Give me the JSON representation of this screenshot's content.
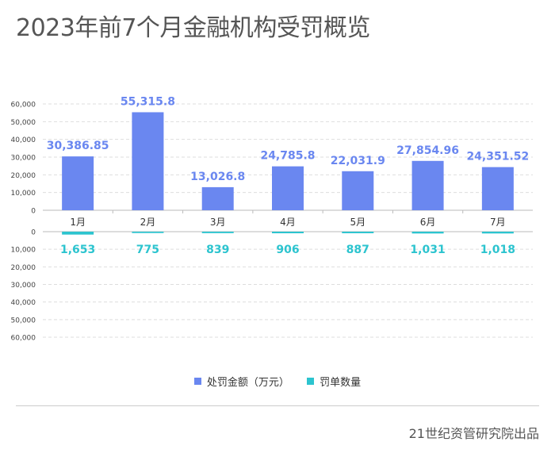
{
  "title": "2023年前7个月金融机构受罚概览",
  "source": "21世纪资管研究院出品",
  "colors": {
    "fine": "#6a87f0",
    "count": "#2cc4cf",
    "grid": "#dddddd",
    "axis": "#bbbbbb"
  },
  "chart_data": {
    "type": "bar",
    "categories": [
      "1月",
      "2月",
      "3月",
      "4月",
      "5月",
      "6月",
      "7月"
    ],
    "series": [
      {
        "name": "处罚金额（万元）",
        "values": [
          30386.85,
          55315.8,
          13026.8,
          24785.8,
          22031.9,
          27854.96,
          24351.52
        ],
        "labels": [
          "30,386.85",
          "55,315.8",
          "13,026.8",
          "24,785.8",
          "22,031.9",
          "27,854.96",
          "24,351.52"
        ]
      },
      {
        "name": "罚单数量",
        "values": [
          1653,
          775,
          839,
          906,
          887,
          1031,
          1018
        ],
        "labels": [
          "1,653",
          "775",
          "839",
          "906",
          "887",
          "1,031",
          "1,018"
        ]
      }
    ],
    "top_axis": {
      "ylim": [
        0,
        60000
      ],
      "ticks": [
        "0",
        "10,000",
        "20,000",
        "30,000",
        "40,000",
        "50,000",
        "60,000"
      ]
    },
    "bottom_axis": {
      "ylim": [
        0,
        60000
      ],
      "ticks": [
        "0",
        "10,000",
        "20,000",
        "30,000",
        "40,000",
        "50,000",
        "60,000"
      ],
      "direction": "down"
    },
    "legend_position": "bottom-center"
  }
}
